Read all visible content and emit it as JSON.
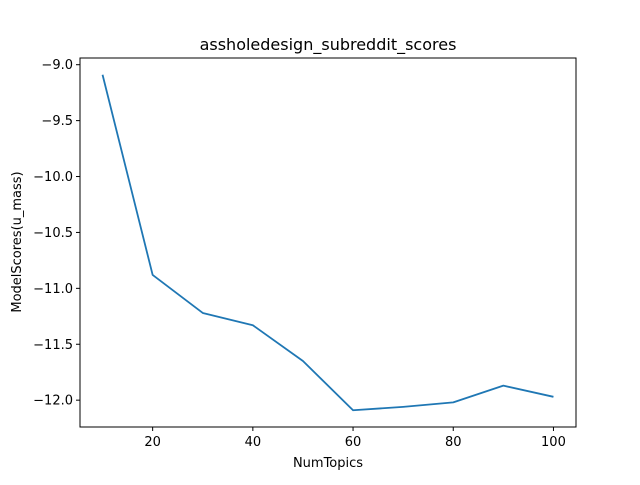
{
  "chart_data": {
    "type": "line",
    "title": "assholedesign_subreddit_scores",
    "xlabel": "NumTopics",
    "ylabel": "ModelScores(u_mass)",
    "x": [
      10,
      20,
      30,
      40,
      50,
      60,
      70,
      80,
      90,
      100
    ],
    "series": [
      {
        "values": [
          -9.09,
          -10.88,
          -11.22,
          -11.33,
          -11.65,
          -12.09,
          -12.06,
          -12.02,
          -11.87,
          -11.97
        ],
        "color": "#1f77b4"
      }
    ],
    "xlim": [
      5.5,
      104.5
    ],
    "ylim": [
      -12.24,
      -8.94
    ],
    "xticks": [
      20,
      40,
      60,
      80,
      100
    ],
    "yticks": [
      -12.0,
      -11.5,
      -11.0,
      -10.5,
      -10.0,
      -9.5,
      -9.0
    ],
    "xtick_labels": [
      "20",
      "40",
      "60",
      "80",
      "100"
    ],
    "ytick_labels": [
      "−12.0",
      "−11.5",
      "−11.0",
      "−10.5",
      "−10.0",
      "−9.5",
      "−9.0"
    ],
    "grid": false,
    "legend": "none"
  }
}
